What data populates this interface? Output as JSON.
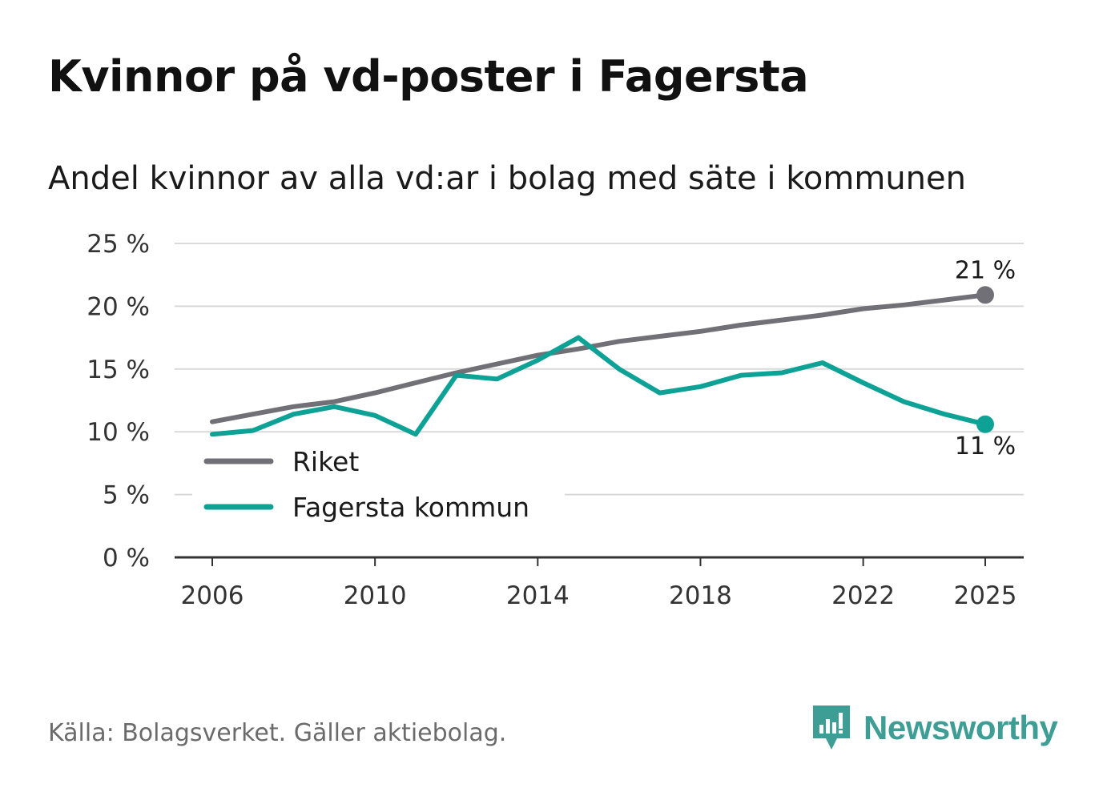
{
  "header": {
    "title": "Kvinnor på vd-poster i Fagersta",
    "subtitle": "Andel kvinnor av alla vd:ar i bolag med säte i kommunen"
  },
  "footer": {
    "source": "Källa: Bolagsverket. Gäller aktiebolag.",
    "brand": "Newsworthy"
  },
  "colors": {
    "riket": "#717076",
    "fagersta": "#0ea297",
    "grid": "#d9d9d9",
    "axis": "#333333",
    "brand": "#3e9e95"
  },
  "chart_data": {
    "type": "line",
    "title": "Kvinnor på vd-poster i Fagersta",
    "subtitle": "Andel kvinnor av alla vd:ar i bolag med säte i kommunen",
    "xlabel": "",
    "ylabel": "",
    "x": [
      2006,
      2007,
      2008,
      2009,
      2010,
      2011,
      2012,
      2013,
      2014,
      2015,
      2016,
      2017,
      2018,
      2019,
      2020,
      2021,
      2022,
      2023,
      2024,
      2025
    ],
    "xlim": [
      2006,
      2025
    ],
    "x_ticks": [
      2006,
      2010,
      2014,
      2018,
      2022,
      2025
    ],
    "x_tick_labels": [
      "2006",
      "2010",
      "2014",
      "2018",
      "2022",
      "2025"
    ],
    "ylim": [
      0,
      25
    ],
    "y_ticks": [
      0,
      5,
      10,
      15,
      20,
      25
    ],
    "y_tick_labels": [
      "0 %",
      "5 %",
      "10 %",
      "15 %",
      "20 %",
      "25 %"
    ],
    "grid": true,
    "legend_position": "bottom-left",
    "series": [
      {
        "name": "Riket",
        "color": "#717076",
        "values": [
          10.8,
          11.4,
          12.0,
          12.4,
          13.1,
          13.9,
          14.7,
          15.4,
          16.1,
          16.6,
          17.2,
          17.6,
          18.0,
          18.5,
          18.9,
          19.3,
          19.8,
          20.1,
          20.5,
          20.9
        ],
        "end_label": "21 %"
      },
      {
        "name": "Fagersta kommun",
        "color": "#0ea297",
        "values": [
          9.8,
          10.1,
          11.4,
          12.0,
          11.3,
          9.8,
          14.5,
          14.2,
          15.7,
          17.5,
          15.0,
          13.1,
          13.6,
          14.5,
          14.7,
          15.5,
          13.9,
          12.4,
          11.4,
          10.6
        ],
        "end_label": "11 %"
      }
    ]
  }
}
